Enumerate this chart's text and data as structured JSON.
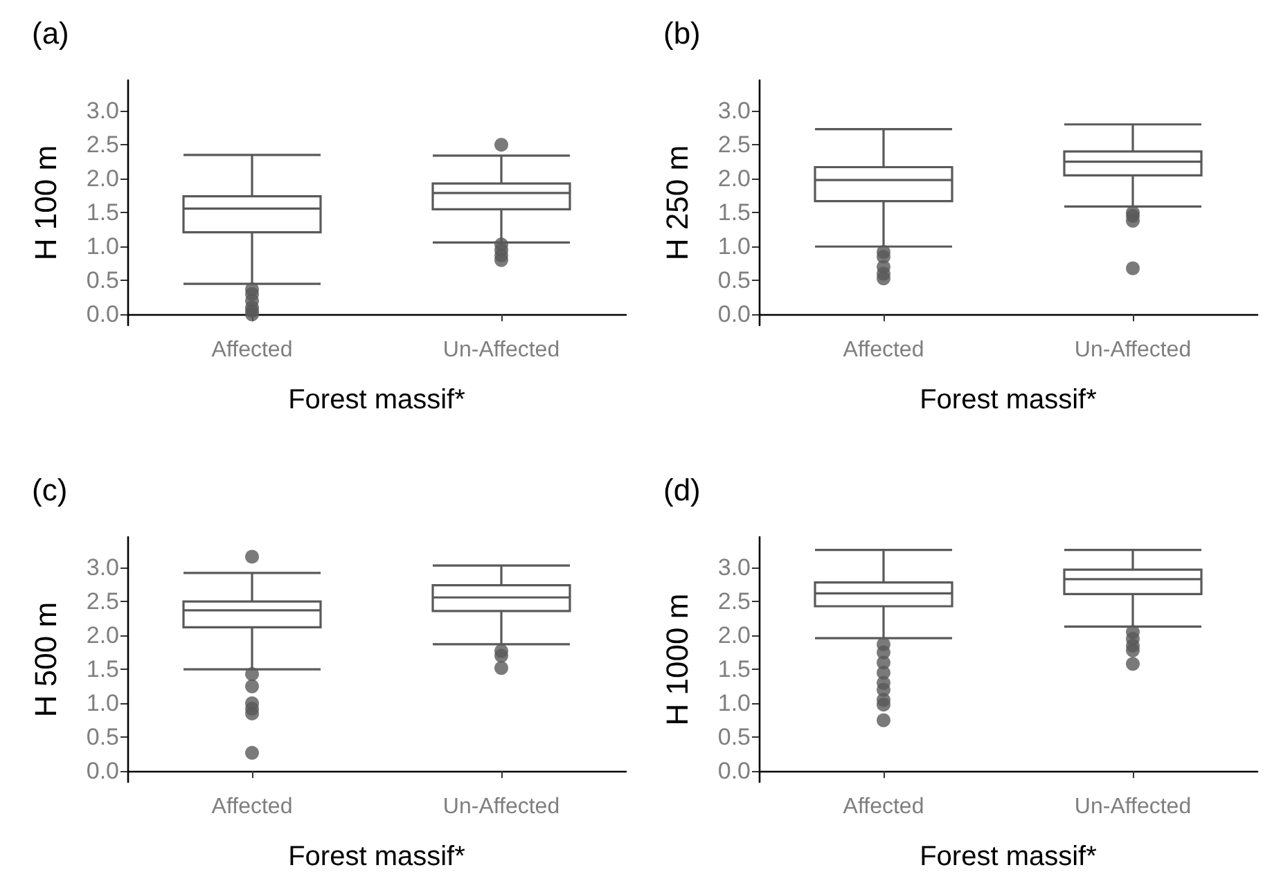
{
  "chart_data": [
    {
      "type": "box",
      "title": "(a)",
      "xlabel": "Forest massif*",
      "ylabel": "H 100 m",
      "categories": [
        "Affected",
        "Un-Affected"
      ],
      "ylim": [
        -0.16,
        3.45
      ],
      "yticks": [
        {
          "value": 0,
          "label": "0.0"
        },
        0.5,
        {
          "value": 1,
          "label": "1.0"
        },
        1.5,
        {
          "value": 2,
          "label": "2.0"
        },
        2.5,
        {
          "value": 3,
          "label": "3.0"
        }
      ],
      "grid": false,
      "series": [
        {
          "color": "#595959",
          "boxes": [
            {
              "low": 0.45,
              "q1": 1.21,
              "median": 1.56,
              "q3": 1.74,
              "high": 2.35,
              "outliers": [
                0.37,
                0.3,
                0.2,
                0.1,
                0.05,
                0.0
              ]
            },
            {
              "low": 1.06,
              "q1": 1.55,
              "median": 1.79,
              "q3": 1.93,
              "high": 2.34,
              "outliers": [
                2.5,
                1.03,
                0.95,
                0.87,
                0.8
              ]
            }
          ]
        }
      ]
    },
    {
      "type": "box",
      "title": "(b)",
      "xlabel": "Forest massif*",
      "ylabel": "H 250 m",
      "categories": [
        "Affected",
        "Un-Affected"
      ],
      "ylim": [
        -0.16,
        3.45
      ],
      "yticks": [
        {
          "value": 0,
          "label": "0.0"
        },
        0.5,
        {
          "value": 1,
          "label": "1.0"
        },
        1.5,
        {
          "value": 2,
          "label": "2.0"
        },
        2.5,
        {
          "value": 3,
          "label": "3.0"
        }
      ],
      "grid": false,
      "series": [
        {
          "color": "#595959",
          "boxes": [
            {
              "low": 1.0,
              "q1": 1.67,
              "median": 1.98,
              "q3": 2.17,
              "high": 2.73,
              "outliers": [
                0.92,
                0.85,
                0.7,
                0.6,
                0.53
              ]
            },
            {
              "low": 1.59,
              "q1": 2.05,
              "median": 2.25,
              "q3": 2.4,
              "high": 2.8,
              "outliers": [
                1.5,
                1.45,
                1.38,
                0.68
              ]
            }
          ]
        }
      ]
    },
    {
      "type": "box",
      "title": "(c)",
      "xlabel": "Forest massif*",
      "ylabel": "H 500 m",
      "categories": [
        "Affected",
        "Un-Affected"
      ],
      "ylim": [
        -0.16,
        3.45
      ],
      "yticks": [
        {
          "value": 0,
          "label": "0.0"
        },
        0.5,
        {
          "value": 1,
          "label": "1.0"
        },
        1.5,
        {
          "value": 2,
          "label": "2.0"
        },
        2.5,
        {
          "value": 3,
          "label": "3.0"
        }
      ],
      "grid": false,
      "series": [
        {
          "color": "#595959",
          "boxes": [
            {
              "low": 1.5,
              "q1": 2.12,
              "median": 2.37,
              "q3": 2.5,
              "high": 2.92,
              "outliers": [
                3.16,
                1.43,
                1.25,
                1.0,
                0.92,
                0.85,
                0.27
              ]
            },
            {
              "low": 1.87,
              "q1": 2.36,
              "median": 2.56,
              "q3": 2.74,
              "high": 3.03,
              "outliers": [
                1.77,
                1.7,
                1.52
              ]
            }
          ]
        }
      ]
    },
    {
      "type": "box",
      "title": "(d)",
      "xlabel": "Forest massif*",
      "ylabel": "H 1000 m",
      "categories": [
        "Affected",
        "Un-Affected"
      ],
      "ylim": [
        -0.16,
        3.45
      ],
      "yticks": [
        {
          "value": 0,
          "label": "0.0"
        },
        0.5,
        {
          "value": 1,
          "label": "1.0"
        },
        1.5,
        {
          "value": 2,
          "label": "2.0"
        },
        2.5,
        {
          "value": 3,
          "label": "3.0"
        }
      ],
      "grid": false,
      "series": [
        {
          "color": "#595959",
          "boxes": [
            {
              "low": 1.96,
              "q1": 2.43,
              "median": 2.62,
              "q3": 2.78,
              "high": 3.26,
              "outliers": [
                1.87,
                1.75,
                1.6,
                1.45,
                1.3,
                1.2,
                1.05,
                0.98,
                0.75
              ]
            },
            {
              "low": 2.13,
              "q1": 2.61,
              "median": 2.83,
              "q3": 2.97,
              "high": 3.26,
              "outliers": [
                2.05,
                1.95,
                1.85,
                1.78,
                1.58
              ]
            }
          ]
        }
      ]
    }
  ]
}
